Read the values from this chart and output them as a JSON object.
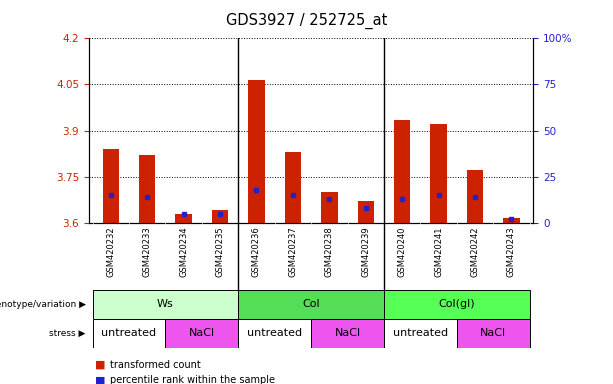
{
  "title": "GDS3927 / 252725_at",
  "samples": [
    "GSM420232",
    "GSM420233",
    "GSM420234",
    "GSM420235",
    "GSM420236",
    "GSM420237",
    "GSM420238",
    "GSM420239",
    "GSM420240",
    "GSM420241",
    "GSM420242",
    "GSM420243"
  ],
  "red_values": [
    3.84,
    3.82,
    3.63,
    3.64,
    4.065,
    3.83,
    3.7,
    3.67,
    3.935,
    3.92,
    3.77,
    3.615
  ],
  "blue_values": [
    15,
    14,
    5,
    5,
    18,
    15,
    13,
    8,
    13,
    15,
    14,
    2
  ],
  "y_min": 3.6,
  "y_max": 4.2,
  "y_ticks_red": [
    3.6,
    3.75,
    3.9,
    4.05,
    4.2
  ],
  "y_ticks_blue": [
    0,
    25,
    50,
    75,
    100
  ],
  "genotype_groups": [
    {
      "label": "Ws",
      "start": 0,
      "end": 3,
      "color": "#ccffcc"
    },
    {
      "label": "Col",
      "start": 4,
      "end": 7,
      "color": "#55dd55"
    },
    {
      "label": "Col(gl)",
      "start": 8,
      "end": 11,
      "color": "#55ff55"
    }
  ],
  "stress_groups": [
    {
      "label": "untreated",
      "start": 0,
      "end": 1,
      "color": "#ffffff"
    },
    {
      "label": "NaCl",
      "start": 2,
      "end": 3,
      "color": "#ee55ee"
    },
    {
      "label": "untreated",
      "start": 4,
      "end": 5,
      "color": "#ffffff"
    },
    {
      "label": "NaCl",
      "start": 6,
      "end": 7,
      "color": "#ee55ee"
    },
    {
      "label": "untreated",
      "start": 8,
      "end": 9,
      "color": "#ffffff"
    },
    {
      "label": "NaCl",
      "start": 10,
      "end": 11,
      "color": "#ee55ee"
    }
  ],
  "bar_color": "#cc2200",
  "dot_color": "#2222cc",
  "background_color": "#ffffff",
  "tick_color_left": "#cc2200",
  "tick_color_right": "#2222cc",
  "xtick_bg_color": "#cccccc"
}
